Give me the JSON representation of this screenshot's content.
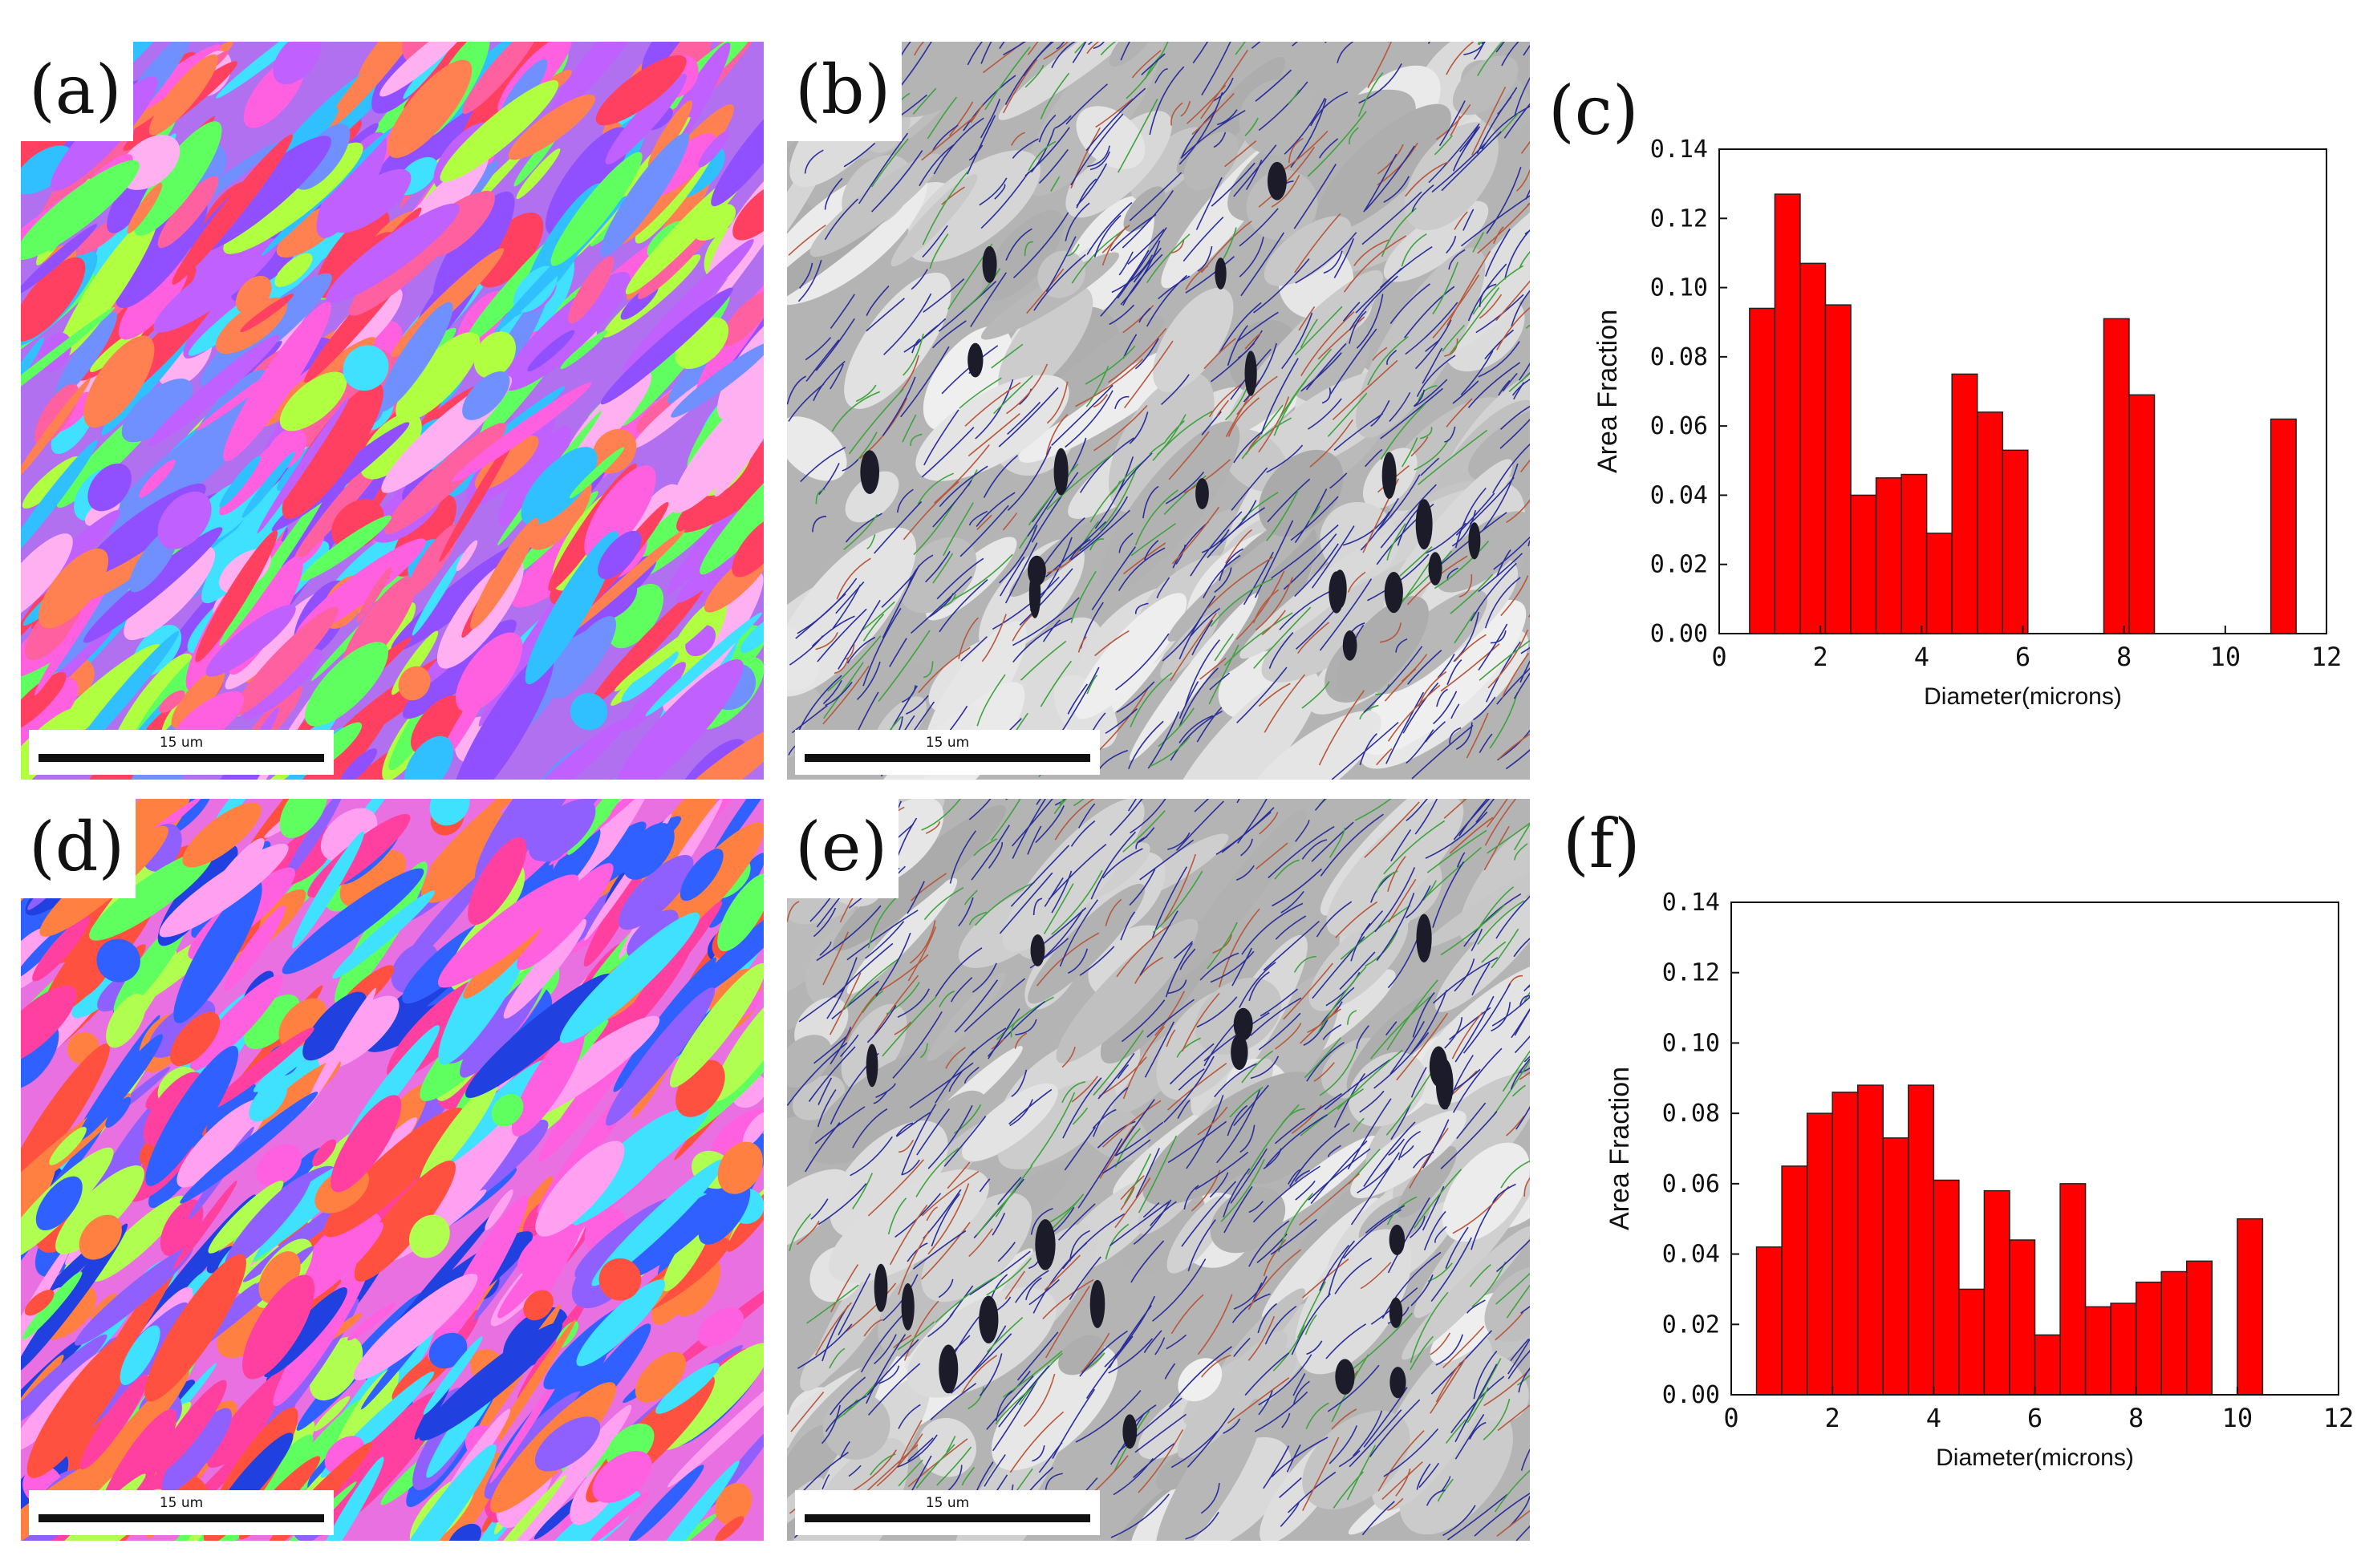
{
  "panels": {
    "a": {
      "label": "(a)",
      "scale_text": "15 um"
    },
    "b": {
      "label": "(b)",
      "scale_text": "15 um"
    },
    "d": {
      "label": "(d)",
      "scale_text": "15 um"
    },
    "e": {
      "label": "(e)",
      "scale_text": "15 um"
    }
  },
  "colors": {
    "bar_fill": "#ff0000",
    "bar_stroke": "#222222",
    "grain_boundary_blue": "#2a2f9a",
    "grain_boundary_green": "#3fa33f",
    "grain_boundary_red": "#b8583c"
  },
  "chart_data": [
    {
      "panel": "(c)",
      "type": "bar",
      "xlabel": "Diameter(microns)",
      "ylabel": "Area Fraction",
      "xlim": [
        0,
        12
      ],
      "ylim": [
        0,
        0.14
      ],
      "x_ticks": [
        0,
        2,
        4,
        6,
        8,
        10,
        12
      ],
      "y_ticks": [
        0.0,
        0.02,
        0.04,
        0.06,
        0.08,
        0.1,
        0.12,
        0.14
      ],
      "x_tick_labels": [
        "0",
        "2",
        "4",
        "6",
        "8",
        "10",
        "12"
      ],
      "y_tick_labels": [
        "0.00",
        "0.02",
        "0.04",
        "0.06",
        "0.08",
        "0.10",
        "0.12",
        "0.14"
      ],
      "bin_width": 0.5,
      "bins": [
        {
          "center": 0.85,
          "value": 0.094
        },
        {
          "center": 1.35,
          "value": 0.127
        },
        {
          "center": 1.85,
          "value": 0.107
        },
        {
          "center": 2.35,
          "value": 0.095
        },
        {
          "center": 2.85,
          "value": 0.04
        },
        {
          "center": 3.35,
          "value": 0.045
        },
        {
          "center": 3.85,
          "value": 0.046
        },
        {
          "center": 4.35,
          "value": 0.029
        },
        {
          "center": 4.85,
          "value": 0.075
        },
        {
          "center": 5.35,
          "value": 0.064
        },
        {
          "center": 5.85,
          "value": 0.053
        },
        {
          "center": 7.85,
          "value": 0.091
        },
        {
          "center": 8.35,
          "value": 0.069
        },
        {
          "center": 11.15,
          "value": 0.062
        }
      ]
    },
    {
      "panel": "(f)",
      "type": "bar",
      "xlabel": "Diameter(microns)",
      "ylabel": "Area Fraction",
      "xlim": [
        0,
        12
      ],
      "ylim": [
        0,
        0.14
      ],
      "x_ticks": [
        0,
        2,
        4,
        6,
        8,
        10,
        12
      ],
      "y_ticks": [
        0.0,
        0.02,
        0.04,
        0.06,
        0.08,
        0.1,
        0.12,
        0.14
      ],
      "x_tick_labels": [
        "0",
        "2",
        "4",
        "6",
        "8",
        "10",
        "12"
      ],
      "y_tick_labels": [
        "0.00",
        "0.02",
        "0.04",
        "0.06",
        "0.08",
        "0.10",
        "0.12",
        "0.14"
      ],
      "bin_width": 0.5,
      "bins": [
        {
          "center": 0.75,
          "value": 0.042
        },
        {
          "center": 1.25,
          "value": 0.065
        },
        {
          "center": 1.75,
          "value": 0.08
        },
        {
          "center": 2.25,
          "value": 0.086
        },
        {
          "center": 2.75,
          "value": 0.088
        },
        {
          "center": 3.25,
          "value": 0.073
        },
        {
          "center": 3.75,
          "value": 0.088
        },
        {
          "center": 4.25,
          "value": 0.061
        },
        {
          "center": 4.75,
          "value": 0.03
        },
        {
          "center": 5.25,
          "value": 0.058
        },
        {
          "center": 5.75,
          "value": 0.044
        },
        {
          "center": 6.25,
          "value": 0.017
        },
        {
          "center": 6.75,
          "value": 0.06
        },
        {
          "center": 7.25,
          "value": 0.025
        },
        {
          "center": 7.75,
          "value": 0.026
        },
        {
          "center": 8.25,
          "value": 0.032
        },
        {
          "center": 8.75,
          "value": 0.035
        },
        {
          "center": 9.25,
          "value": 0.038
        },
        {
          "center": 10.25,
          "value": 0.05
        }
      ]
    }
  ],
  "plot_labels": {
    "c": "(c)",
    "f": "(f)"
  }
}
